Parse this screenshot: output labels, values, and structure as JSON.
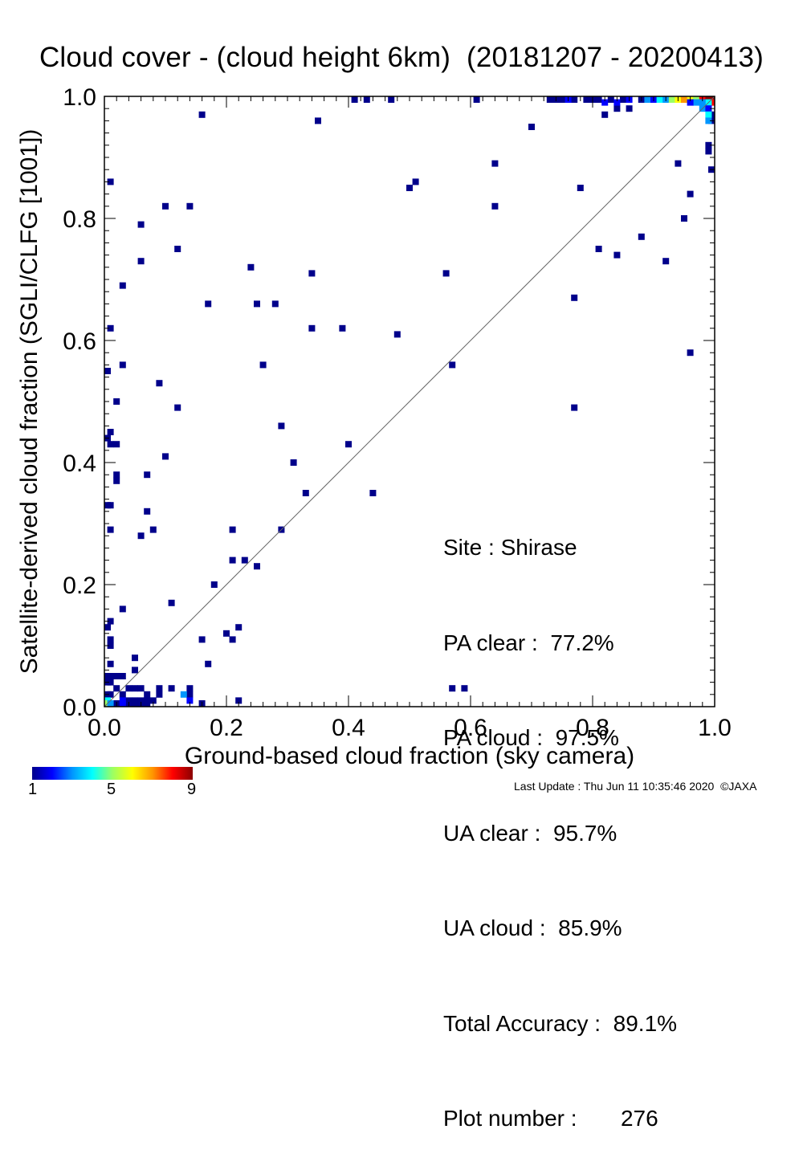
{
  "title": "Cloud cover - (cloud height 6km)  (20181207 - 20200413)",
  "stats": {
    "site": "Site : Shirase",
    "pa_clear": "PA clear :  77.2%",
    "pa_cloud": "PA cloud :  97.5%",
    "ua_clear": "UA clear :  95.7%",
    "ua_cloud": "UA cloud :  85.9%",
    "total_accuracy": "Total Accuracy :  89.1%",
    "plot_number": "Plot number :       276"
  },
  "colorbar": {
    "min_label": "1",
    "mid_label": "5",
    "max_label": "9",
    "colors": [
      "#00008b",
      "#0000ff",
      "#0096ff",
      "#00ffff",
      "#9bff64",
      "#ffff00",
      "#ff9600",
      "#ff0000",
      "#8b0000"
    ]
  },
  "last_update": "Last Update : Thu Jun 11 10:35:46 2020  ©JAXA",
  "chart_data": {
    "type": "heatmap",
    "title": "Cloud cover - (cloud height 6km)  (20181207 - 20200413)",
    "xlabel": "Ground-based cloud fraction (sky camera)",
    "ylabel": "Satellite-derived cloud fraction (SGLI/CLFG [1001])",
    "xlim": [
      0,
      1
    ],
    "ylim": [
      0,
      1
    ],
    "xticks": [
      "0.0",
      "0.2",
      "0.4",
      "0.6",
      "0.8",
      "1.0"
    ],
    "yticks": [
      "0.0",
      "0.2",
      "0.4",
      "0.6",
      "0.8",
      "1.0"
    ],
    "reference_line": "1:1 diagonal",
    "count_range": [
      1,
      9
    ],
    "points": [
      [
        0.16,
        0.97
      ],
      [
        0.35,
        0.96
      ],
      [
        0.7,
        0.95
      ],
      [
        0.82,
        0.97
      ],
      [
        0.84,
        0.98
      ],
      [
        0.86,
        0.98
      ],
      [
        0.64,
        0.89
      ],
      [
        0.94,
        0.89
      ],
      [
        0.01,
        0.86
      ],
      [
        0.5,
        0.85
      ],
      [
        0.51,
        0.86
      ],
      [
        0.78,
        0.85
      ],
      [
        0.96,
        0.84
      ],
      [
        0.1,
        0.82
      ],
      [
        0.14,
        0.82
      ],
      [
        0.64,
        0.82
      ],
      [
        0.95,
        0.8
      ],
      [
        0.06,
        0.79
      ],
      [
        0.88,
        0.77
      ],
      [
        0.12,
        0.75
      ],
      [
        0.81,
        0.75
      ],
      [
        0.84,
        0.74
      ],
      [
        0.06,
        0.73
      ],
      [
        0.92,
        0.73
      ],
      [
        0.24,
        0.72
      ],
      [
        0.34,
        0.71
      ],
      [
        0.56,
        0.71
      ],
      [
        0.03,
        0.69
      ],
      [
        0.77,
        0.67
      ],
      [
        0.17,
        0.66
      ],
      [
        0.25,
        0.66
      ],
      [
        0.28,
        0.66
      ],
      [
        0.01,
        0.62
      ],
      [
        0.34,
        0.62
      ],
      [
        0.39,
        0.62
      ],
      [
        0.48,
        0.61
      ],
      [
        0.96,
        0.58
      ],
      [
        0.03,
        0.56
      ],
      [
        0.26,
        0.56
      ],
      [
        0.57,
        0.56
      ],
      [
        0.0,
        0.55
      ],
      [
        0.09,
        0.53
      ],
      [
        0.02,
        0.5
      ],
      [
        0.12,
        0.49
      ],
      [
        0.77,
        0.49
      ],
      [
        0.29,
        0.46
      ],
      [
        0.01,
        0.45
      ],
      [
        0.0,
        0.44
      ],
      [
        0.01,
        0.43
      ],
      [
        0.02,
        0.43
      ],
      [
        0.4,
        0.43
      ],
      [
        0.1,
        0.41
      ],
      [
        0.31,
        0.4
      ],
      [
        0.02,
        0.38
      ],
      [
        0.07,
        0.38
      ],
      [
        0.02,
        0.37
      ],
      [
        0.33,
        0.35
      ],
      [
        0.44,
        0.35
      ],
      [
        0.0,
        0.33
      ],
      [
        0.01,
        0.33
      ],
      [
        0.07,
        0.32
      ],
      [
        0.01,
        0.29
      ],
      [
        0.08,
        0.29
      ],
      [
        0.21,
        0.29
      ],
      [
        0.29,
        0.29
      ],
      [
        0.06,
        0.28
      ],
      [
        0.21,
        0.24
      ],
      [
        0.23,
        0.24
      ],
      [
        0.25,
        0.23
      ],
      [
        0.18,
        0.2
      ],
      [
        0.11,
        0.17
      ],
      [
        0.03,
        0.16
      ],
      [
        0.01,
        0.14
      ],
      [
        0.0,
        0.13
      ],
      [
        0.22,
        0.13
      ],
      [
        0.2,
        0.12
      ],
      [
        0.21,
        0.11
      ],
      [
        0.01,
        0.11
      ],
      [
        0.16,
        0.11
      ],
      [
        0.01,
        0.1
      ],
      [
        0.05,
        0.08
      ],
      [
        0.17,
        0.07
      ],
      [
        0.01,
        0.07
      ],
      [
        0.05,
        0.06
      ],
      [
        0.0,
        0.05
      ],
      [
        0.01,
        0.05
      ],
      [
        0.02,
        0.05
      ],
      [
        0.03,
        0.05
      ],
      [
        0.0,
        0.04
      ],
      [
        0.01,
        0.04
      ],
      [
        0.02,
        0.03
      ],
      [
        0.04,
        0.03
      ],
      [
        0.05,
        0.03
      ],
      [
        0.06,
        0.03
      ],
      [
        0.09,
        0.03
      ],
      [
        0.11,
        0.03
      ],
      [
        0.14,
        0.03
      ],
      [
        0.57,
        0.03
      ],
      [
        0.59,
        0.03
      ],
      [
        0.0,
        0.02
      ],
      [
        0.01,
        0.02
      ],
      [
        0.03,
        0.02
      ],
      [
        0.07,
        0.02
      ],
      [
        0.09,
        0.02
      ],
      [
        0.14,
        0.02
      ],
      [
        0.22,
        0.01
      ],
      [
        0.04,
        0.01
      ],
      [
        0.05,
        0.01
      ],
      [
        0.06,
        0.01
      ],
      [
        0.07,
        0.01
      ],
      [
        0.08,
        0.01
      ],
      [
        0.16,
        0.0
      ],
      [
        0.02,
        0.0
      ],
      [
        0.04,
        0.0
      ],
      [
        0.05,
        0.0
      ],
      [
        0.06,
        0.0
      ],
      [
        0.07,
        0.0
      ],
      [
        0.41,
        1.0
      ],
      [
        0.43,
        1.0
      ],
      [
        0.47,
        1.0
      ],
      [
        0.61,
        1.0
      ],
      [
        0.73,
        1.0
      ],
      [
        0.74,
        1.0
      ],
      [
        0.75,
        1.0
      ],
      [
        0.77,
        1.0
      ],
      [
        0.79,
        1.0
      ],
      [
        0.8,
        1.0
      ],
      [
        0.81,
        1.0
      ],
      [
        0.83,
        1.0
      ],
      [
        0.85,
        1.0
      ],
      [
        0.88,
        1.0
      ],
      [
        0.9,
        1.0
      ],
      [
        0.91,
        1.0
      ],
      [
        0.99,
        0.92
      ],
      [
        0.99,
        0.91
      ],
      [
        1.0,
        0.88
      ],
      [
        1.0,
        0.97
      ],
      [
        1.0,
        0.96
      ]
    ],
    "dense_cells": [
      [
        0.0,
        0.01,
        4
      ],
      [
        0.0,
        0.0,
        5
      ],
      [
        0.01,
        0.0,
        3
      ],
      [
        0.03,
        0.0,
        2
      ],
      [
        0.13,
        0.02,
        3
      ],
      [
        0.14,
        0.01,
        2
      ],
      [
        0.03,
        0.01,
        2
      ],
      [
        0.76,
        1.0,
        2
      ],
      [
        0.82,
        0.99,
        2
      ],
      [
        0.84,
        0.99,
        2
      ],
      [
        0.86,
        1.0,
        2
      ],
      [
        0.89,
        1.0,
        3
      ],
      [
        0.9,
        1.0,
        2
      ],
      [
        0.91,
        1.0,
        4
      ],
      [
        0.92,
        1.0,
        3
      ],
      [
        0.93,
        1.0,
        5
      ],
      [
        0.94,
        1.0,
        6
      ],
      [
        0.95,
        1.0,
        7
      ],
      [
        0.96,
        1.0,
        6
      ],
      [
        0.97,
        1.0,
        5
      ],
      [
        0.98,
        1.0,
        8
      ],
      [
        0.99,
        1.0,
        9
      ],
      [
        1.0,
        1.0,
        9
      ],
      [
        1.0,
        0.99,
        8
      ],
      [
        0.99,
        0.99,
        4
      ],
      [
        0.98,
        0.99,
        3
      ],
      [
        0.98,
        0.98,
        3
      ],
      [
        0.99,
        0.98,
        2
      ],
      [
        0.99,
        0.97,
        4
      ],
      [
        0.99,
        0.96,
        3
      ],
      [
        0.97,
        0.99,
        3
      ],
      [
        0.96,
        0.99,
        2
      ]
    ]
  }
}
